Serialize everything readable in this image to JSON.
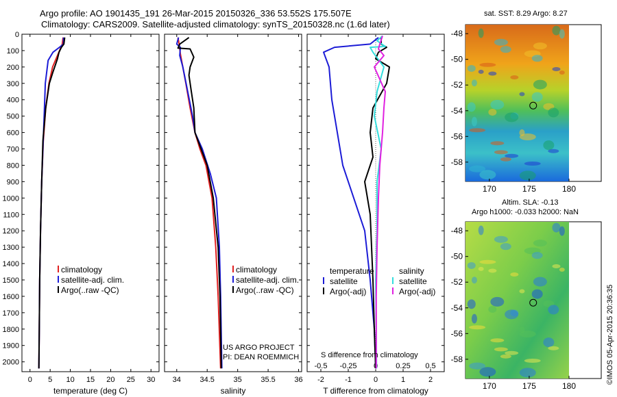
{
  "header": {
    "line1": "Argo profile: AO 1901435_191 26-Mar-2015 20150326_336 53.552S 175.507E",
    "line2": "Climatology: CARS2009. Satellite-adjusted climatology: synTS_20150328.nc (1.6d later)"
  },
  "depth_axis": {
    "ticks": [
      0,
      100,
      200,
      300,
      400,
      500,
      600,
      700,
      800,
      900,
      1000,
      1100,
      1200,
      1300,
      1400,
      1500,
      1600,
      1700,
      1800,
      1900,
      2000
    ],
    "ylim": [
      0,
      2060
    ]
  },
  "colors": {
    "climatology": "#e02020",
    "satellite": "#1b1bd6",
    "argo": "#000000",
    "sat_salinity": "#33dddd",
    "argo_salinity_adj": "#e020e0"
  },
  "chart_data": [
    {
      "type": "line",
      "xlabel": "temperature (deg C)",
      "xticks": [
        0,
        5,
        10,
        15,
        20,
        25,
        30
      ],
      "xlim": [
        -2,
        32
      ],
      "legend": [
        "climatology",
        "satellite-adj. clim.",
        "Argo(..raw -QC)"
      ],
      "series": [
        {
          "name": "climatology",
          "color": "#e02020",
          "points": [
            [
              8.2,
              20
            ],
            [
              8.0,
              60
            ],
            [
              7.5,
              90
            ],
            [
              6.8,
              130
            ],
            [
              5.6,
              200
            ],
            [
              4.7,
              300
            ],
            [
              3.9,
              450
            ],
            [
              3.3,
              650
            ],
            [
              2.9,
              900
            ],
            [
              2.6,
              1200
            ],
            [
              2.4,
              1500
            ],
            [
              2.3,
              1800
            ],
            [
              2.2,
              2040
            ]
          ]
        },
        {
          "name": "satellite-adj. clim.",
          "color": "#1b1bd6",
          "points": [
            [
              8.3,
              20
            ],
            [
              8.3,
              60
            ],
            [
              7.3,
              80
            ],
            [
              5.7,
              110
            ],
            [
              4.5,
              160
            ],
            [
              3.8,
              300
            ],
            [
              3.5,
              500
            ],
            [
              3.2,
              700
            ],
            [
              2.9,
              900
            ],
            [
              2.6,
              1200
            ],
            [
              2.4,
              1500
            ],
            [
              2.3,
              1800
            ],
            [
              2.2,
              2040
            ]
          ]
        },
        {
          "name": "Argo(..raw -QC)",
          "color": "#000000",
          "points": [
            [
              8.6,
              20
            ],
            [
              8.4,
              60
            ],
            [
              7.8,
              80
            ],
            [
              7.2,
              110
            ],
            [
              6.8,
              150
            ],
            [
              6.4,
              180
            ],
            [
              5.7,
              230
            ],
            [
              4.8,
              300
            ],
            [
              3.9,
              450
            ],
            [
              3.2,
              650
            ],
            [
              2.9,
              900
            ],
            [
              2.6,
              1200
            ],
            [
              2.4,
              1500
            ],
            [
              2.3,
              1800
            ],
            [
              2.2,
              2040
            ]
          ]
        }
      ]
    },
    {
      "type": "line",
      "xlabel": "salinity",
      "xticks": [
        34,
        34.5,
        35,
        35.5,
        36
      ],
      "xlim": [
        33.8,
        36.05
      ],
      "legend": [
        "climatology",
        "satellite-adj. clim.",
        "Argo(..raw -QC)"
      ],
      "annotations": [
        "US ARGO PROJECT",
        "PI: DEAN ROEMMICH"
      ],
      "series": [
        {
          "name": "climatology",
          "color": "#e02020",
          "points": [
            [
              34.02,
              20
            ],
            [
              34.04,
              60
            ],
            [
              34.06,
              120
            ],
            [
              34.15,
              300
            ],
            [
              34.22,
              450
            ],
            [
              34.3,
              600
            ],
            [
              34.38,
              700
            ],
            [
              34.48,
              800
            ],
            [
              34.58,
              1000
            ],
            [
              34.64,
              1300
            ],
            [
              34.68,
              1600
            ],
            [
              34.72,
              2040
            ]
          ]
        },
        {
          "name": "satellite-adj. clim.",
          "color": "#1b1bd6",
          "points": [
            [
              34.03,
              20
            ],
            [
              34.0,
              60
            ],
            [
              34.06,
              80
            ],
            [
              34.05,
              130
            ],
            [
              34.1,
              200
            ],
            [
              34.18,
              350
            ],
            [
              34.26,
              500
            ],
            [
              34.3,
              600
            ],
            [
              34.42,
              700
            ],
            [
              34.55,
              850
            ],
            [
              34.65,
              1000
            ],
            [
              34.7,
              1300
            ],
            [
              34.72,
              1600
            ],
            [
              34.74,
              2040
            ]
          ]
        },
        {
          "name": "Argo(..raw -QC)",
          "color": "#000000",
          "points": [
            [
              34.2,
              20
            ],
            [
              34.05,
              60
            ],
            [
              34.02,
              85
            ],
            [
              34.22,
              90
            ],
            [
              34.28,
              140
            ],
            [
              34.22,
              200
            ],
            [
              34.2,
              250
            ],
            [
              34.24,
              350
            ],
            [
              34.28,
              450
            ],
            [
              34.3,
              600
            ],
            [
              34.4,
              700
            ],
            [
              34.5,
              800
            ],
            [
              34.6,
              1000
            ],
            [
              34.68,
              1300
            ],
            [
              34.71,
              1600
            ],
            [
              34.73,
              2040
            ]
          ]
        }
      ]
    },
    {
      "type": "line",
      "xlabel": "T difference from climatology",
      "xticks": [
        -2,
        -1,
        0,
        1,
        2
      ],
      "top_label": "S difference from climatology",
      "top_ticks": [
        "-0.5",
        "-0.25",
        "0",
        "0.25",
        "0.5"
      ],
      "xlim": [
        -2.5,
        2.5
      ],
      "legend_titles": [
        "temperature",
        "salinity"
      ],
      "legend": [
        "satellite",
        "Argo(-adj)",
        "satellite",
        "Argo(-adj)"
      ],
      "series": [
        {
          "name": "satellite",
          "color": "#1b1bd6",
          "points": [
            [
              0.1,
              20
            ],
            [
              -0.2,
              60
            ],
            [
              -1.5,
              80
            ],
            [
              -1.9,
              110
            ],
            [
              -1.7,
              200
            ],
            [
              -1.6,
              400
            ],
            [
              -1.4,
              600
            ],
            [
              -1.2,
              800
            ],
            [
              -0.8,
              1000
            ],
            [
              -0.4,
              1200
            ],
            [
              -0.2,
              1500
            ],
            [
              -0.05,
              1800
            ],
            [
              0,
              2040
            ]
          ]
        },
        {
          "name": "Argo(-adj)",
          "color": "#000000",
          "points": [
            [
              0.2,
              20
            ],
            [
              0.2,
              60
            ],
            [
              0.4,
              80
            ],
            [
              0.1,
              110
            ],
            [
              0.0,
              150
            ],
            [
              0.5,
              200
            ],
            [
              0.4,
              300
            ],
            [
              -0.1,
              450
            ],
            [
              -0.2,
              600
            ],
            [
              -0.1,
              750
            ],
            [
              -0.4,
              900
            ],
            [
              -0.2,
              1100
            ],
            [
              -0.15,
              1300
            ],
            [
              -0.1,
              1500
            ],
            [
              -0.05,
              1800
            ],
            [
              0,
              2040
            ]
          ]
        },
        {
          "name": "satellite",
          "color": "#33dddd",
          "points": [
            [
              0.25,
              10
            ],
            [
              0.05,
              40
            ],
            [
              0.35,
              75
            ],
            [
              -0.2,
              80
            ],
            [
              -0.1,
              110
            ],
            [
              0.3,
              200
            ],
            [
              0.05,
              350
            ],
            [
              -0.05,
              500
            ],
            [
              0.2,
              700
            ],
            [
              0.05,
              900
            ],
            [
              0.05,
              1200
            ],
            [
              0.0,
              1500
            ],
            [
              0.02,
              1800
            ],
            [
              0.03,
              2040
            ]
          ]
        },
        {
          "name": "Argo(-adj)",
          "color": "#e020e0",
          "points": [
            [
              0.25,
              10
            ],
            [
              0.15,
              60
            ],
            [
              0.1,
              90
            ],
            [
              0.3,
              130
            ],
            [
              -0.05,
              200
            ],
            [
              0.35,
              350
            ],
            [
              0.3,
              450
            ],
            [
              0.25,
              600
            ],
            [
              0.15,
              800
            ],
            [
              0.1,
              1000
            ],
            [
              0.05,
              1300
            ],
            [
              0.02,
              1600
            ],
            [
              0.02,
              2040
            ]
          ]
        }
      ]
    },
    {
      "type": "heatmap",
      "title": "sat. SST: 8.29 Argo: 8.27",
      "xticks": [
        170,
        175,
        180
      ],
      "yticks": [
        -48,
        -50,
        -52,
        -54,
        -56,
        -58
      ],
      "xlim": [
        167,
        180
      ],
      "ylim": [
        -59.5,
        -47.3
      ],
      "marker": [
        175.5,
        -53.6
      ]
    },
    {
      "type": "heatmap",
      "title": "Altim. SLA: -0.13",
      "subtitle": "Argo h1000: -0.033 h2000: NaN",
      "xticks": [
        170,
        175,
        180
      ],
      "yticks": [
        -48,
        -50,
        -52,
        -54,
        -56,
        -58
      ],
      "xlim": [
        167,
        180
      ],
      "ylim": [
        -59.5,
        -47.3
      ],
      "marker": [
        175.5,
        -53.6
      ]
    }
  ],
  "footer": {
    "stamp": "©IMOS 05-Apr-2015 20:36:35"
  }
}
